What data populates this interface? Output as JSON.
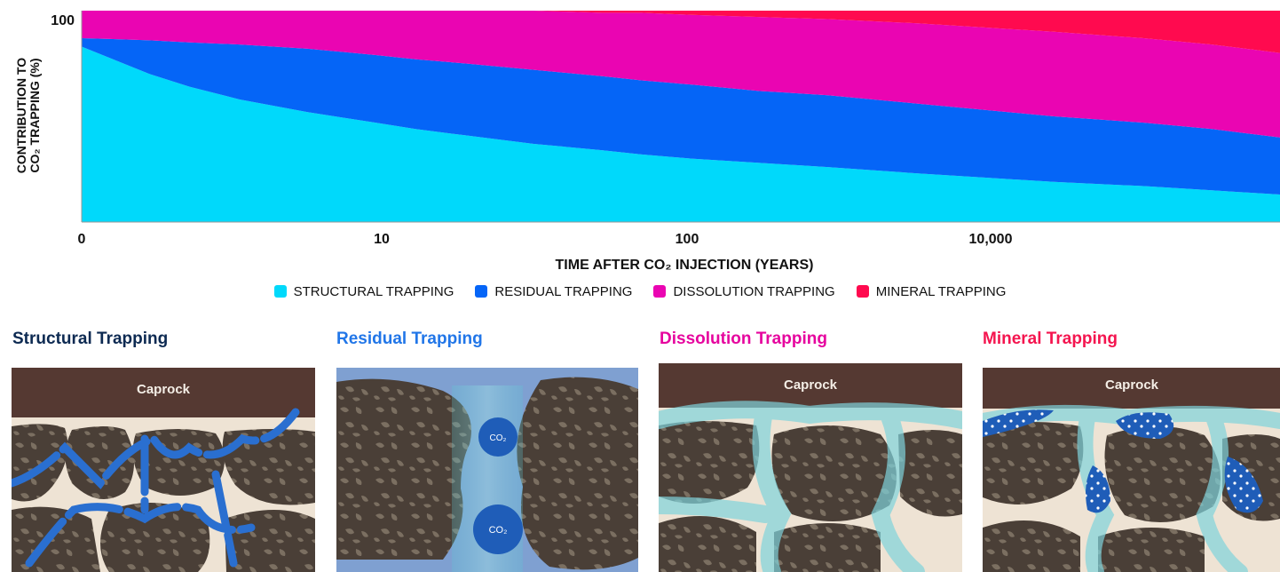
{
  "chart_data": {
    "type": "area",
    "stacked": true,
    "x_scale": "log",
    "xlabel": "TIME AFTER CO₂ INJECTION (YEARS)",
    "ylabel_line1": "CONTRIBUTION TO",
    "ylabel_line2": "CO₂ TRAPPING (%)",
    "x_ticks": [
      "0",
      "10",
      "100",
      "10,000"
    ],
    "y_ticks": [
      "100"
    ],
    "ylim": [
      0,
      100
    ],
    "x": [
      1,
      2,
      3,
      5,
      10,
      20,
      30,
      50,
      100,
      200,
      300,
      500,
      1000,
      2000,
      5000,
      10000,
      20000,
      50000,
      100000,
      200000
    ],
    "series": [
      {
        "name": "STRUCTURAL TRAPPING",
        "color": "#00d9fb",
        "values": [
          83,
          70,
          64,
          58,
          52,
          47,
          44,
          41,
          37,
          34,
          32,
          30,
          28,
          26,
          23,
          21,
          19,
          17,
          15,
          13
        ]
      },
      {
        "name": "RESIDUAL TRAPPING",
        "color": "#0565f7",
        "values": [
          4,
          16,
          21,
          26,
          30,
          32,
          33,
          34,
          35,
          35,
          35,
          35,
          34,
          34,
          33,
          32,
          31,
          30,
          29,
          27
        ]
      },
      {
        "name": "DISSOLUTION TRAPPING",
        "color": "#ea05b2",
        "values": [
          13,
          14,
          15,
          16,
          18,
          21,
          23,
          25,
          28,
          30,
          32,
          33,
          35,
          36,
          38,
          39,
          40,
          40,
          40,
          40
        ]
      },
      {
        "name": "MINERAL TRAPPING",
        "color": "#ff0a4f",
        "values": [
          0,
          0,
          0,
          0,
          0,
          0,
          0,
          0,
          0,
          1,
          1,
          2,
          3,
          4,
          6,
          8,
          10,
          13,
          16,
          20
        ]
      }
    ],
    "legend_position": "bottom"
  },
  "panels": [
    {
      "title": "Structural Trapping",
      "title_color": "#0d2a52",
      "caprock_label": "Caprock"
    },
    {
      "title": "Residual Trapping",
      "title_color": "#2176e8",
      "co2_labels": [
        "CO₂",
        "CO₂"
      ]
    },
    {
      "title": "Dissolution Trapping",
      "title_color": "#e6059e",
      "caprock_label": "Caprock"
    },
    {
      "title": "Mineral Trapping",
      "title_color": "#f4154f",
      "caprock_label": "Caprock"
    }
  ],
  "colors": {
    "caprock": "#553932",
    "rock": "#4a3f37",
    "rock_speckle": "#8a7e6e",
    "pore": "#eee3d4",
    "water": "#7fa0d1"
  }
}
